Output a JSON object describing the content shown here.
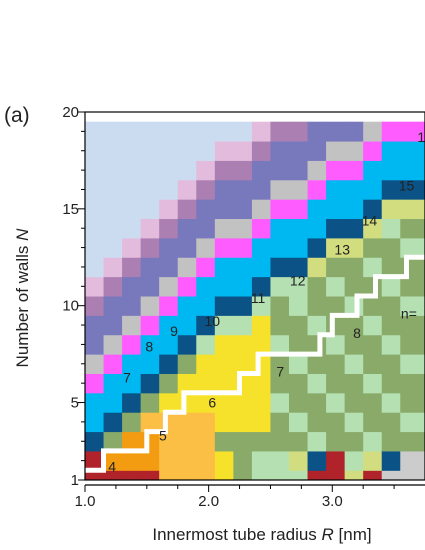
{
  "chart_data": {
    "type": "heatmap",
    "panel_label": "(a)",
    "xlabel_prefix": "Innermost tube radius ",
    "xlabel_var": "R",
    "xlabel_suffix": " [nm]",
    "ylabel_prefix": "Number of walls  ",
    "ylabel_var": "N",
    "xlim": [
      1.0,
      3.75
    ],
    "ylim": [
      1,
      20
    ],
    "x_ticks": [
      {
        "value": 1.0,
        "label": "1.0"
      },
      {
        "value": 2.0,
        "label": "2.0"
      },
      {
        "value": 3.0,
        "label": "3.0"
      }
    ],
    "y_ticks": [
      {
        "value": 1,
        "label": "1"
      },
      {
        "value": 5,
        "label": "5"
      },
      {
        "value": 10,
        "label": "10"
      },
      {
        "value": 15,
        "label": "15"
      },
      {
        "value": 20,
        "label": "20"
      }
    ],
    "region_labels": [
      {
        "text": "4",
        "x": 1.22,
        "y": 1.7
      },
      {
        "text": "5",
        "x": 1.63,
        "y": 3.3
      },
      {
        "text": "6",
        "x": 2.03,
        "y": 5.0
      },
      {
        "text": "7",
        "x": 1.34,
        "y": 6.3
      },
      {
        "text": "7",
        "x": 2.58,
        "y": 6.6
      },
      {
        "text": "8",
        "x": 1.52,
        "y": 7.9
      },
      {
        "text": "8",
        "x": 3.2,
        "y": 8.6
      },
      {
        "text": "9",
        "x": 1.72,
        "y": 8.7
      },
      {
        "text": "10",
        "x": 2.03,
        "y": 9.2
      },
      {
        "text": "11",
        "x": 2.4,
        "y": 10.4
      },
      {
        "text": "12",
        "x": 2.72,
        "y": 11.3
      },
      {
        "text": "13",
        "x": 3.08,
        "y": 12.9
      },
      {
        "text": "14",
        "x": 3.3,
        "y": 14.4
      },
      {
        "text": "15",
        "x": 3.6,
        "y": 16.2
      },
      {
        "text": "1",
        "x": 3.72,
        "y": 18.7
      },
      {
        "text": "n=",
        "x": 3.62,
        "y": 9.6
      }
    ],
    "boundary": [
      [
        1.0,
        1.5
      ],
      [
        1.15,
        1.5
      ],
      [
        1.15,
        2.5
      ],
      [
        1.5,
        2.5
      ],
      [
        1.5,
        3.5
      ],
      [
        1.65,
        3.5
      ],
      [
        1.65,
        4.5
      ],
      [
        1.8,
        4.5
      ],
      [
        1.8,
        5.5
      ],
      [
        2.25,
        5.5
      ],
      [
        2.25,
        6.5
      ],
      [
        2.4,
        6.5
      ],
      [
        2.4,
        7.5
      ],
      [
        2.9,
        7.5
      ],
      [
        2.9,
        8.5
      ],
      [
        3.0,
        8.5
      ],
      [
        3.0,
        9.5
      ],
      [
        3.2,
        9.5
      ],
      [
        3.2,
        10.5
      ],
      [
        3.35,
        10.5
      ],
      [
        3.35,
        11.5
      ],
      [
        3.6,
        11.5
      ],
      [
        3.6,
        12.5
      ],
      [
        3.75,
        12.5
      ]
    ],
    "colors": {
      "4": "#b0232a",
      "5": "#f39c12",
      "6": "#fbbf45",
      "7": "#f7e22b",
      "8": "#8aaa6a",
      "9": "#b5e0b2",
      "10": "#d2dd7f",
      "11": "#0b5287",
      "12": "#00b8f1",
      "13": "#ff5cff",
      "14": "#c2c2c2",
      "15": "#7878bc",
      "16": "#ac7fb2",
      "17": "#e3bcdd",
      "18": "#ccdcf0"
    }
  }
}
